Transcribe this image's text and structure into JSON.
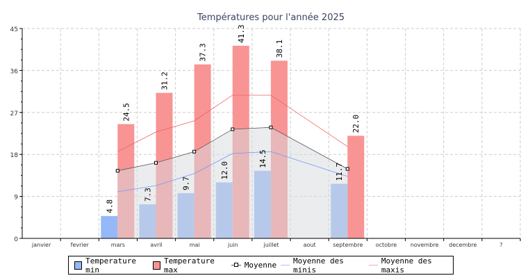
{
  "chart_data": {
    "type": "bar",
    "title": "Températures pour l'année 2025",
    "categories": [
      "janvier",
      "fevrier",
      "mars",
      "avril",
      "mai",
      "juin",
      "juillet",
      "aout",
      "septembre",
      "octobre",
      "novembre",
      "decembre",
      "?"
    ],
    "ylim": [
      0,
      45
    ],
    "yticks": [
      0,
      9,
      18,
      27,
      36,
      45
    ],
    "grid": true,
    "series": [
      {
        "name": "Temperature min",
        "type": "bar",
        "color": "#94b8f8",
        "values": [
          null,
          null,
          4.8,
          7.3,
          9.7,
          12.0,
          14.5,
          null,
          11.7,
          null,
          null,
          null,
          null
        ],
        "labels": [
          "",
          "",
          "4.8",
          "7.3",
          "9.7",
          "12.0",
          "14.5",
          "",
          "11.7",
          "",
          "",
          "",
          ""
        ]
      },
      {
        "name": "Temperature max",
        "type": "bar",
        "color": "#f89494",
        "values": [
          null,
          null,
          24.5,
          31.2,
          37.3,
          41.3,
          38.1,
          null,
          22.0,
          null,
          null,
          null,
          null
        ],
        "labels": [
          "",
          "",
          "24.5",
          "31.2",
          "37.3",
          "41.3",
          "38.1",
          "",
          "22.0",
          "",
          "",
          "",
          ""
        ]
      },
      {
        "name": "Moyenne",
        "type": "line",
        "color": "#555555",
        "values": [
          null,
          null,
          14.5,
          16.2,
          18.6,
          23.4,
          23.8,
          null,
          14.9,
          null,
          null,
          null,
          null
        ]
      },
      {
        "name": "Moyenne des minis",
        "type": "line",
        "color": "#6f9af0",
        "values": [
          null,
          null,
          10.0,
          11.3,
          13.9,
          18.2,
          18.6,
          null,
          13.3,
          null,
          null,
          null,
          null
        ]
      },
      {
        "name": "Moyenne des maxis",
        "type": "line",
        "color": "#f06060",
        "values": [
          null,
          null,
          18.6,
          22.8,
          25.2,
          30.7,
          30.7,
          null,
          19.7,
          null,
          null,
          null,
          null
        ]
      }
    ],
    "legend_position": "bottom"
  }
}
